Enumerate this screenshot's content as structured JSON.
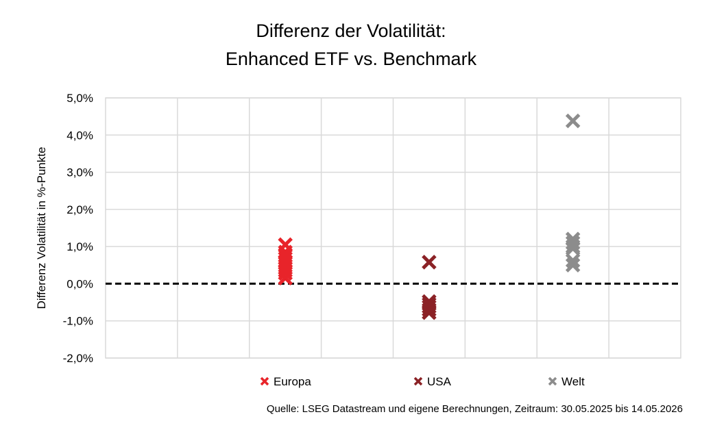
{
  "chart_data": {
    "type": "scatter",
    "title_lines": [
      "Differenz der Volatilität:",
      "Enhanced ETF vs. Benchmark"
    ],
    "ylabel": "Differenz Volatilität in %-Punkte",
    "ylim": [
      -2.0,
      5.0
    ],
    "ytick_labels": [
      "-2,0%",
      "-1,0%",
      "0,0%",
      "1,0%",
      "2,0%",
      "3,0%",
      "4,0%",
      "5,0%"
    ],
    "ytick_values": [
      -2,
      -1,
      0,
      1,
      2,
      3,
      4,
      5
    ],
    "x_categories": 8,
    "zero_line": "dashed",
    "grid": true,
    "legend_position": "bottom",
    "series": [
      {
        "name": "Europa",
        "x": 2,
        "color": "#e8242a",
        "values": [
          1.05,
          0.85,
          0.75,
          0.68,
          0.6,
          0.55,
          0.48,
          0.42,
          0.35,
          0.28,
          0.15
        ]
      },
      {
        "name": "USA",
        "x": 4,
        "color": "#8b2226",
        "values": [
          0.58,
          -0.48,
          -0.55,
          -0.62,
          -0.7,
          -0.78
        ]
      },
      {
        "name": "Welt",
        "x": 6,
        "color": "#8c8c8c",
        "values": [
          4.38,
          1.2,
          1.1,
          1.0,
          0.95,
          0.62,
          0.5
        ]
      }
    ],
    "source": "Quelle: LSEG Datastream und eigene Berechnungen, Zeitraum: 30.05.2025 bis 14.05.2026"
  }
}
